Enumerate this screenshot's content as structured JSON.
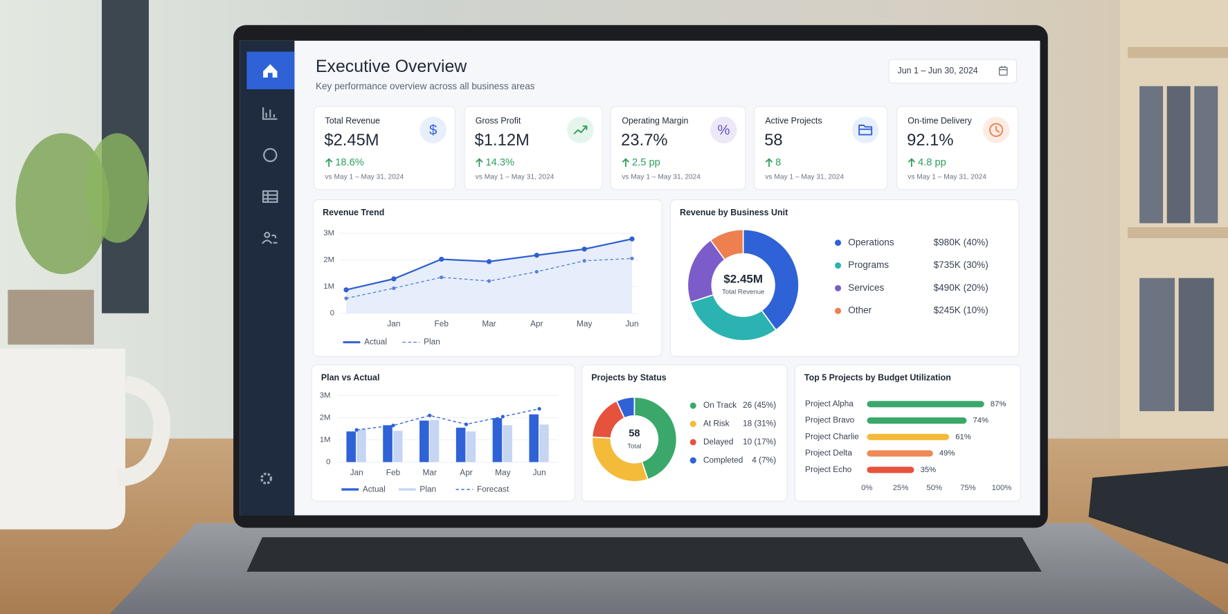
{
  "header": {
    "title": "Executive Overview",
    "subtitle": "Key performance overview across all business areas",
    "date_range": "Jun 1 – Jun 30, 2024"
  },
  "kpis": [
    {
      "label": "Total Revenue",
      "value": "$2.45M",
      "change": "18.6%",
      "comparison": "vs May 1 – May 31, 2024",
      "icon": "$"
    },
    {
      "label": "Gross Profit",
      "value": "$1.12M",
      "change": "14.3%",
      "comparison": "vs May 1 – May 31, 2024"
    },
    {
      "label": "Operating Margin",
      "value": "23.7%",
      "change": "2.5 pp",
      "comparison": "vs May 1 – May 31, 2024",
      "icon": "%"
    },
    {
      "label": "Active Projects",
      "value": "58",
      "change": "8",
      "comparison": "vs May 1 – May 31, 2024"
    },
    {
      "label": "On-time Delivery",
      "value": "92.1%",
      "change": "4.8 pp",
      "comparison": "vs May 1 – May 31, 2024"
    }
  ],
  "chart_data": [
    {
      "type": "line",
      "title": "Revenue Trend",
      "categories": [
        null,
        "Jan",
        "Feb",
        "Mar",
        "Apr",
        "May",
        "Jun"
      ],
      "series": [
        {
          "name": "Actual",
          "color": "#2f5fd0",
          "style": "solid",
          "values": [
            0.88,
            1.29,
            2.03,
            1.94,
            2.18,
            2.41,
            2.79
          ]
        },
        {
          "name": "Plan",
          "color": "#5b80d8",
          "style": "dashed",
          "values": [
            0.56,
            0.94,
            1.35,
            1.21,
            1.56,
            1.97,
            2.06
          ]
        }
      ],
      "ylim": [
        0,
        3
      ],
      "yticks": [
        0,
        {
          "value": 1,
          "label": "1M"
        },
        {
          "value": 2,
          "label": "2M"
        },
        {
          "value": 3,
          "label": "3M"
        }
      ],
      "grid": true
    },
    {
      "type": "donut",
      "title": "Revenue by Business Unit",
      "center_value": "$2.45M",
      "center_label": "Total Revenue",
      "categories": [
        "Operations",
        "Programs",
        "Services",
        "Other"
      ],
      "values": [
        40,
        30,
        20,
        10
      ],
      "value_labels": [
        "$980K (40%)",
        "$735K (30%)",
        "$490K (20%)",
        "$245K (10%)"
      ],
      "colors": [
        "#2f62d6",
        "#2bb3b1",
        "#7c5cc9",
        "#ee7f4f"
      ]
    },
    {
      "type": "combo",
      "title": "Plan vs Actual",
      "categories": [
        "Jan",
        "Feb",
        "Mar",
        "Apr",
        "May",
        "Jun"
      ],
      "series": [
        {
          "name": "Actual",
          "type": "bar",
          "color": "#2f62d6",
          "values": [
            1.38,
            1.66,
            1.87,
            1.55,
            1.98,
            2.15
          ]
        },
        {
          "name": "Plan",
          "type": "bar",
          "color": "#c5d5f2",
          "values": [
            1.48,
            1.41,
            1.9,
            1.38,
            1.66,
            1.69
          ]
        },
        {
          "name": "Forecast",
          "type": "line",
          "style": "dashed",
          "color": "#2f62d6",
          "values": [
            1.45,
            1.65,
            2.1,
            1.7,
            2.05,
            2.4
          ]
        }
      ],
      "ylim": [
        0,
        3
      ],
      "yticks": [
        0,
        {
          "value": 1,
          "label": "1M"
        },
        {
          "value": 2,
          "label": "2M"
        },
        {
          "value": 3,
          "label": "3M"
        }
      ],
      "grid": true
    },
    {
      "type": "donut",
      "title": "Projects by Status",
      "center_value": "58",
      "center_label": "Total",
      "categories": [
        "On Track",
        "At Risk",
        "Delayed",
        "Completed"
      ],
      "values": [
        26,
        18,
        10,
        4
      ],
      "value_labels": [
        "26 (45%)",
        "18 (31%)",
        "10 (17%)",
        "4 (7%)"
      ],
      "colors": [
        "#3aa86b",
        "#f4bb3a",
        "#e5533d",
        "#2f62d6"
      ]
    },
    {
      "type": "barh",
      "title": "Top 5 Projects by Budget Utilization",
      "categories": [
        "Project Alpha",
        "Project Bravo",
        "Project Charlie",
        "Project Delta",
        "Project Echo"
      ],
      "values": [
        87,
        74,
        61,
        49,
        35
      ],
      "value_labels": [
        "87%",
        "74%",
        "61%",
        "49%",
        "35%"
      ],
      "colors": [
        "#3aa86b",
        "#3aa86b",
        "#f4bb3a",
        "#ee8a55",
        "#e5533d"
      ],
      "xlim": [
        0,
        100
      ],
      "xticks": [
        {
          "value": 0,
          "label": "0%"
        },
        {
          "value": 25,
          "label": "25%"
        },
        {
          "value": 50,
          "label": "50%"
        },
        {
          "value": 75,
          "label": "75%"
        },
        {
          "value": 100,
          "label": "100%"
        }
      ]
    }
  ]
}
